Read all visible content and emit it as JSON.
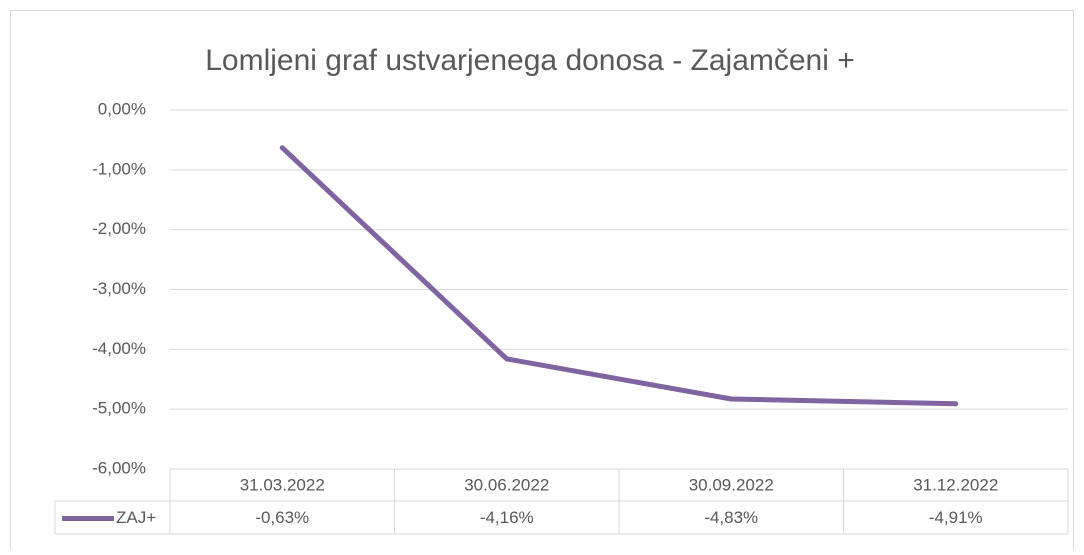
{
  "chart_data": {
    "type": "line",
    "title": "Lomljeni graf ustvarjenega donosa - Zajamčeni +",
    "categories": [
      "31.03.2022",
      "30.06.2022",
      "30.09.2022",
      "31.12.2022"
    ],
    "series": [
      {
        "name": "ZAJ+",
        "color": "#8064a2",
        "values": [
          -0.63,
          -4.16,
          -4.83,
          -4.91
        ],
        "value_labels": [
          "-0,63%",
          "-4,16%",
          "-4,83%",
          "-4,91%"
        ]
      }
    ],
    "ylim": [
      -6,
      0
    ],
    "yticks": [
      {
        "value": 0,
        "label": "0,00%"
      },
      {
        "value": -1,
        "label": "-1,00%"
      },
      {
        "value": -2,
        "label": "-2,00%"
      },
      {
        "value": -3,
        "label": "-3,00%"
      },
      {
        "value": -4,
        "label": "-4,00%"
      },
      {
        "value": -5,
        "label": "-5,00%"
      },
      {
        "value": -6,
        "label": "-6,00%"
      }
    ],
    "grid": true
  }
}
